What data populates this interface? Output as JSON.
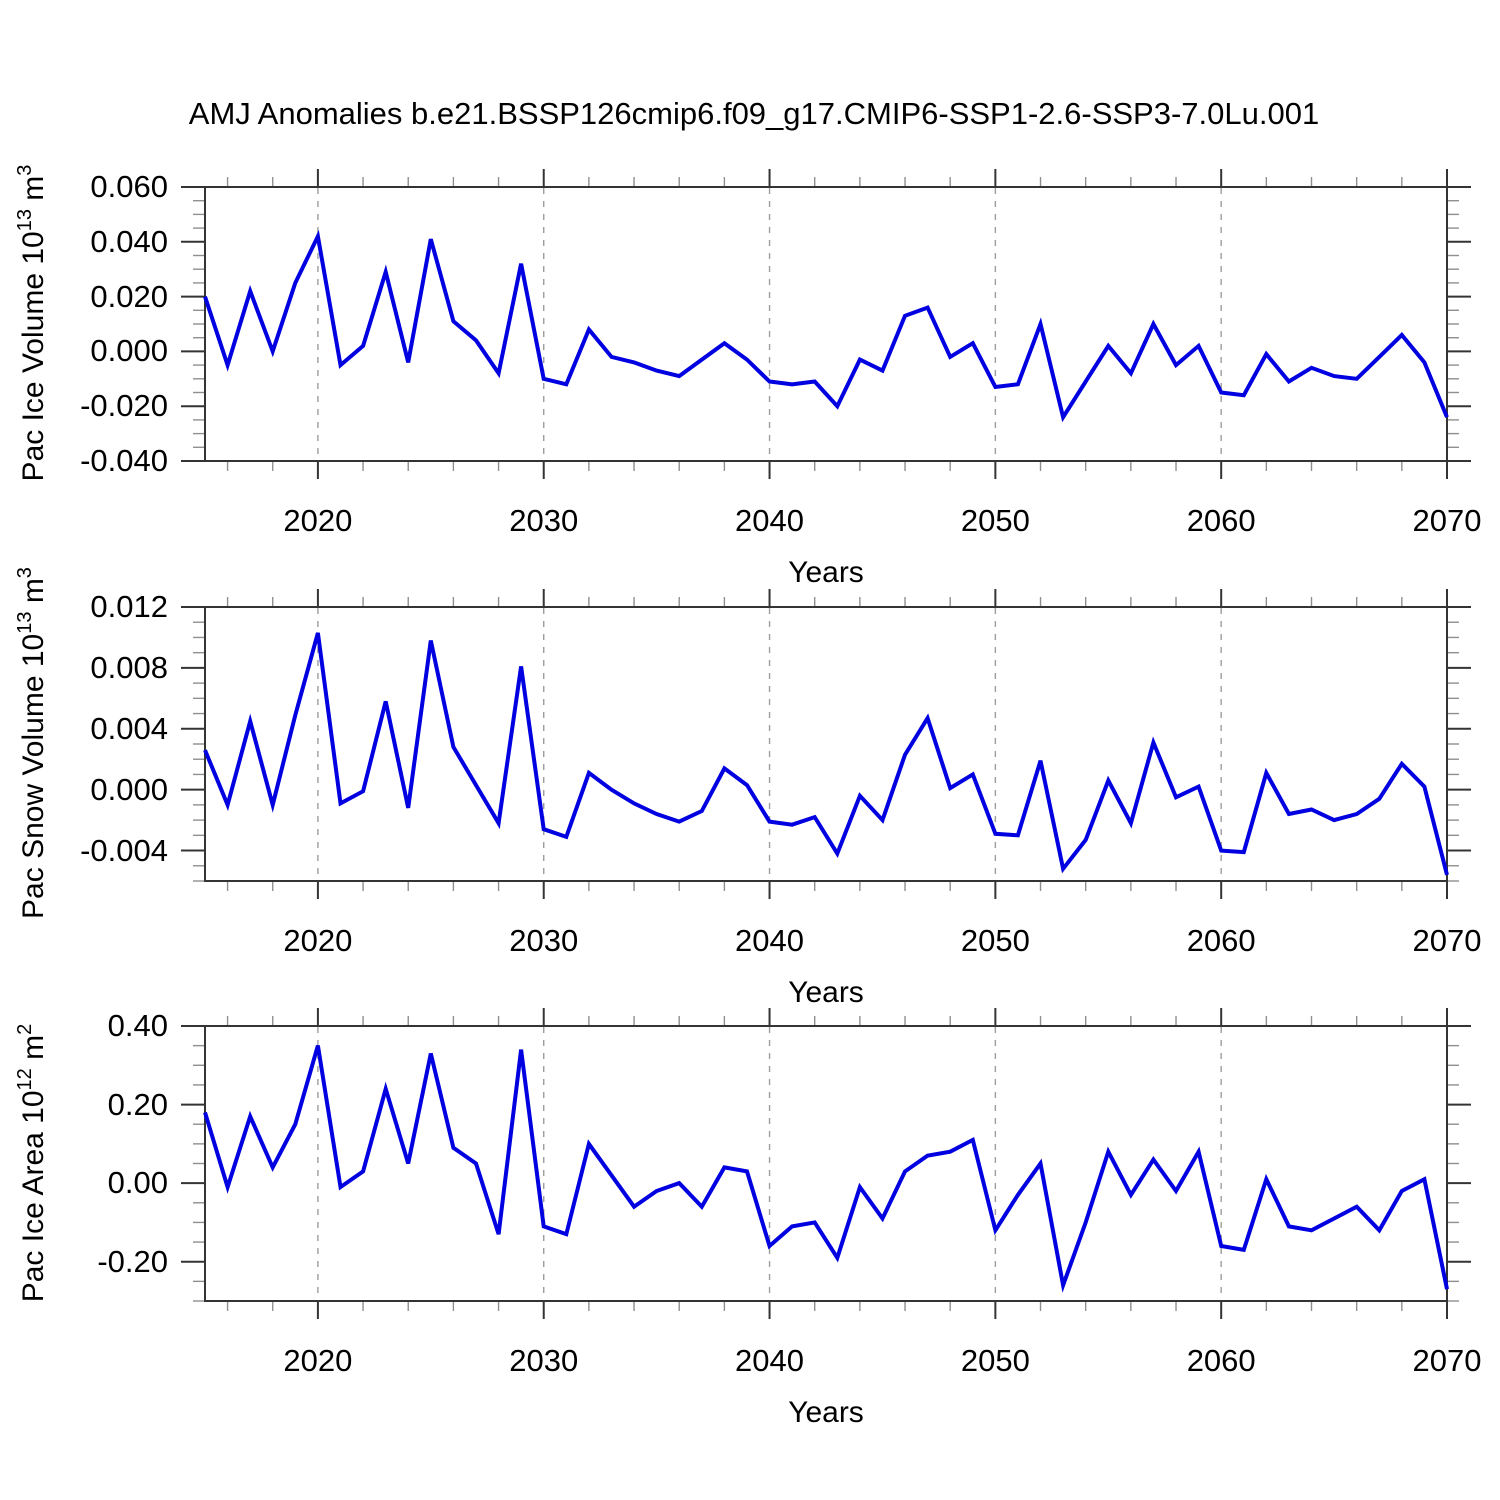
{
  "title": "AMJ Anomalies b.e21.BSSP126cmip6.f09_g17.CMIP6-SSP1-2.6-SSP3-7.0Lu.001",
  "chart_data": {
    "type": "line",
    "layout": "3 stacked panels sharing x axis",
    "xlabel": "Years",
    "xlim": [
      2015,
      2070
    ],
    "x_major_ticks": [
      "2020",
      "2030",
      "2040",
      "2050",
      "2060",
      "2070"
    ],
    "x_minor_step": 2,
    "dashed_gridlines_at_years": [
      2020,
      2030,
      2040,
      2050,
      2060
    ],
    "grid": "vertical dashed only",
    "legend": "none",
    "line_color": "#0000e0",
    "gridline_color": "#9d9d9d",
    "axis_color": "#343434",
    "minor_tick_color": "#8f8f8f",
    "x": [
      2015,
      2016,
      2017,
      2018,
      2019,
      2020,
      2021,
      2022,
      2023,
      2024,
      2025,
      2026,
      2027,
      2028,
      2029,
      2030,
      2031,
      2032,
      2033,
      2034,
      2035,
      2036,
      2037,
      2038,
      2039,
      2040,
      2041,
      2042,
      2043,
      2044,
      2045,
      2046,
      2047,
      2048,
      2049,
      2050,
      2051,
      2052,
      2053,
      2054,
      2055,
      2056,
      2057,
      2058,
      2059,
      2060,
      2061,
      2062,
      2063,
      2064,
      2065,
      2066,
      2067,
      2068,
      2069,
      2070
    ],
    "panels": [
      {
        "id": "pac-ice-volume",
        "ylabel_text": "Pac Ice Volume 10^13 m^3",
        "ylabel_parts": [
          {
            "t": "Pac Ice Volume 10"
          },
          {
            "t": "13",
            "sup": true
          },
          {
            "t": " m"
          },
          {
            "t": "3",
            "sup": true
          }
        ],
        "ylim": [
          -0.04,
          0.06
        ],
        "y_major_step": 0.02,
        "y_minor_step": 0.005,
        "y_tick_labels": [
          "0.060",
          "0.040",
          "0.020",
          "0.000",
          "-0.020",
          "-0.040"
        ],
        "values": [
          0.02,
          -0.005,
          0.022,
          0.0,
          0.025,
          0.042,
          -0.005,
          0.002,
          0.029,
          -0.004,
          0.041,
          0.011,
          0.004,
          -0.008,
          0.032,
          -0.01,
          -0.012,
          0.008,
          -0.002,
          -0.004,
          -0.007,
          -0.009,
          -0.003,
          0.003,
          -0.003,
          -0.011,
          -0.012,
          -0.011,
          -0.02,
          -0.003,
          -0.007,
          0.013,
          0.016,
          -0.002,
          0.003,
          -0.013,
          -0.012,
          0.01,
          -0.024,
          -0.011,
          0.002,
          -0.008,
          0.01,
          -0.005,
          0.002,
          -0.015,
          -0.016,
          -0.001,
          -0.011,
          -0.006,
          -0.009,
          -0.01,
          -0.002,
          0.006,
          -0.004,
          -0.024
        ]
      },
      {
        "id": "pac-snow-volume",
        "ylabel_text": "Pac Snow Volume 10^13 m^3",
        "ylabel_parts": [
          {
            "t": "Pac Snow Volume 10"
          },
          {
            "t": "13",
            "sup": true
          },
          {
            "t": " m"
          },
          {
            "t": "3",
            "sup": true
          }
        ],
        "ylim": [
          -0.006,
          0.012
        ],
        "y_major_step": 0.004,
        "y_minor_step": 0.001,
        "y_tick_labels": [
          "0.012",
          "0.008",
          "0.004",
          "0.000",
          "-0.004"
        ],
        "values": [
          0.0026,
          -0.001,
          0.0045,
          -0.001,
          0.0049,
          0.0103,
          -0.0009,
          -0.0001,
          0.0058,
          -0.0012,
          0.0098,
          0.0028,
          0.0003,
          -0.0022,
          0.0081,
          -0.0026,
          -0.0031,
          0.0011,
          0.0,
          -0.0009,
          -0.0016,
          -0.0021,
          -0.0014,
          0.0014,
          0.0003,
          -0.0021,
          -0.0023,
          -0.0018,
          -0.0042,
          -0.0004,
          -0.002,
          0.0023,
          0.0047,
          0.0001,
          0.001,
          -0.0029,
          -0.003,
          0.0019,
          -0.0052,
          -0.0033,
          0.0006,
          -0.0022,
          0.0031,
          -0.0005,
          0.0002,
          -0.004,
          -0.0041,
          0.0011,
          -0.0016,
          -0.0013,
          -0.002,
          -0.0016,
          -0.0006,
          0.0017,
          0.0002,
          -0.0056
        ]
      },
      {
        "id": "pac-ice-area",
        "ylabel_text": "Pac Ice Area 10^12 m^2",
        "ylabel_parts": [
          {
            "t": "Pac Ice Area 10"
          },
          {
            "t": "12",
            "sup": true
          },
          {
            "t": " m"
          },
          {
            "t": "2",
            "sup": true
          }
        ],
        "ylim": [
          -0.3,
          0.4
        ],
        "y_major_step": 0.2,
        "y_minor_step": 0.05,
        "y_tick_labels": [
          "0.40",
          "0.20",
          "0.00",
          "-0.20"
        ],
        "values": [
          0.18,
          -0.01,
          0.17,
          0.04,
          0.15,
          0.35,
          -0.01,
          0.03,
          0.24,
          0.05,
          0.33,
          0.09,
          0.05,
          -0.13,
          0.34,
          -0.11,
          -0.13,
          0.1,
          0.02,
          -0.06,
          -0.02,
          0.0,
          -0.06,
          0.04,
          0.03,
          -0.16,
          -0.11,
          -0.1,
          -0.19,
          -0.01,
          -0.09,
          0.03,
          0.07,
          0.08,
          0.11,
          -0.12,
          -0.03,
          0.05,
          -0.26,
          -0.1,
          0.08,
          -0.03,
          0.06,
          -0.02,
          0.08,
          -0.16,
          -0.17,
          0.01,
          -0.11,
          -0.12,
          -0.09,
          -0.06,
          -0.12,
          -0.02,
          0.01,
          -0.27
        ]
      }
    ]
  }
}
